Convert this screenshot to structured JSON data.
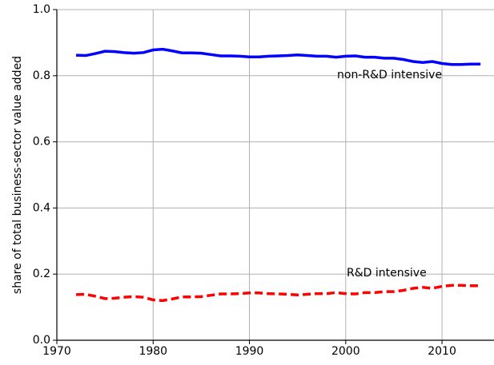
{
  "chart_data": {
    "type": "line",
    "y_label": "share of total business-sector value added",
    "x": [
      1972,
      1973,
      1974,
      1975,
      1976,
      1977,
      1978,
      1979,
      1980,
      1981,
      1982,
      1983,
      1984,
      1985,
      1986,
      1987,
      1988,
      1989,
      1990,
      1991,
      1992,
      1993,
      1994,
      1995,
      1996,
      1997,
      1998,
      1999,
      2000,
      2001,
      2002,
      2003,
      2004,
      2005,
      2006,
      2007,
      2008,
      2009,
      2010,
      2011,
      2012,
      2013,
      2014
    ],
    "series": [
      {
        "name": "non-R&D intensive",
        "color": "#0000ff",
        "linestyle": "solid",
        "values": [
          0.862,
          0.861,
          0.867,
          0.874,
          0.873,
          0.87,
          0.868,
          0.87,
          0.878,
          0.88,
          0.875,
          0.869,
          0.869,
          0.868,
          0.864,
          0.86,
          0.86,
          0.859,
          0.857,
          0.857,
          0.859,
          0.86,
          0.861,
          0.863,
          0.861,
          0.859,
          0.859,
          0.856,
          0.859,
          0.86,
          0.856,
          0.856,
          0.853,
          0.853,
          0.849,
          0.843,
          0.84,
          0.843,
          0.837,
          0.834,
          0.834,
          0.835,
          0.835
        ]
      },
      {
        "name": "R&D intensive",
        "color": "#ff0000",
        "linestyle": "dashed",
        "values": [
          0.138,
          0.139,
          0.133,
          0.126,
          0.127,
          0.13,
          0.132,
          0.13,
          0.122,
          0.12,
          0.125,
          0.131,
          0.131,
          0.132,
          0.136,
          0.14,
          0.14,
          0.141,
          0.143,
          0.143,
          0.141,
          0.14,
          0.139,
          0.137,
          0.139,
          0.141,
          0.141,
          0.144,
          0.141,
          0.14,
          0.144,
          0.144,
          0.147,
          0.147,
          0.151,
          0.157,
          0.16,
          0.157,
          0.163,
          0.166,
          0.166,
          0.165,
          0.165
        ]
      }
    ],
    "xlim": [
      1970,
      2015.4
    ],
    "xticks": [
      1970,
      1980,
      1990,
      2000,
      2010
    ],
    "ylim": [
      0,
      1
    ],
    "yticks": [
      {
        "value": 0,
        "label": "0.0"
      },
      0.2,
      0.4,
      0.6,
      0.8,
      {
        "value": 1,
        "label": "1.0"
      }
    ],
    "grid": true
  }
}
